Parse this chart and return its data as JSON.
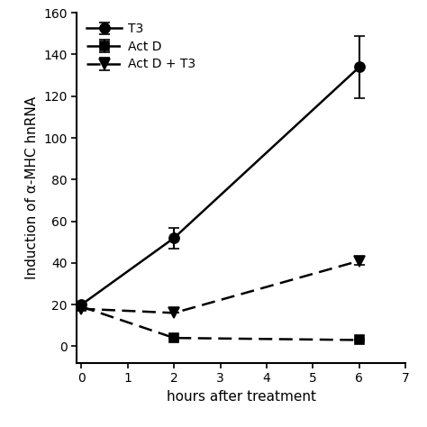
{
  "title": "",
  "xlabel": "hours after treatment",
  "ylabel": "Induction of α-MHC hnRNA",
  "xlim": [
    -0.1,
    7
  ],
  "ylim": [
    -8,
    160
  ],
  "xticks": [
    0,
    1,
    2,
    3,
    4,
    5,
    6,
    7
  ],
  "yticks": [
    0,
    20,
    40,
    60,
    80,
    100,
    120,
    140,
    160
  ],
  "series": [
    {
      "label": "T3",
      "x": [
        0,
        2,
        6
      ],
      "y": [
        20,
        52,
        134
      ],
      "yerr": [
        0,
        5,
        15
      ],
      "linestyle": "-",
      "marker": "o",
      "color": "#000000",
      "linewidth": 1.8,
      "markersize": 8,
      "dashes": []
    },
    {
      "label": "Act D",
      "x": [
        0,
        2,
        6
      ],
      "y": [
        19,
        4,
        3
      ],
      "yerr": [
        0,
        0,
        0
      ],
      "linestyle": "--",
      "marker": "s",
      "color": "#000000",
      "linewidth": 1.8,
      "markersize": 7,
      "dashes": [
        6,
        3
      ]
    },
    {
      "label": "Act D + T3",
      "x": [
        0,
        2,
        6
      ],
      "y": [
        18,
        16,
        41
      ],
      "yerr": [
        0,
        0,
        2
      ],
      "linestyle": "--",
      "marker": "v",
      "color": "#000000",
      "linewidth": 1.8,
      "markersize": 8,
      "dashes": [
        6,
        3
      ]
    }
  ],
  "legend_loc": "upper left",
  "background_color": "#ffffff",
  "axes_color": "#000000"
}
